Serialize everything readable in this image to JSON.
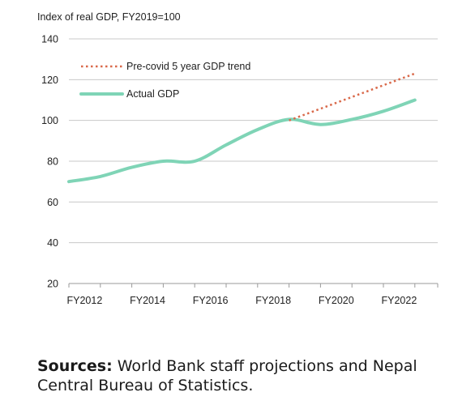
{
  "chart_data": {
    "type": "line",
    "ylabel": "Index of real GDP, FY2019=100",
    "ylim": [
      20,
      140
    ],
    "yticks": [
      20,
      40,
      60,
      80,
      100,
      120,
      140
    ],
    "xlim": [
      2012,
      2023
    ],
    "xticks": [
      {
        "value": 2012,
        "label": "FY2012"
      },
      {
        "value": 2014,
        "label": "FY2014"
      },
      {
        "value": 2016,
        "label": "FY2016"
      },
      {
        "value": 2018,
        "label": "FY2018"
      },
      {
        "value": 2020,
        "label": "FY2020"
      },
      {
        "value": 2022,
        "label": "FY2022"
      }
    ],
    "grid": "horizontal",
    "legend_position": "top-left",
    "series": [
      {
        "name": "Pre-covid 5 year GDP trend",
        "style": "dotted",
        "color": "#d9694a",
        "points": [
          {
            "x": 2019,
            "y": 100
          },
          {
            "x": 2023,
            "y": 123
          }
        ]
      },
      {
        "name": "Actual GDP",
        "style": "solid",
        "color": "#7fd4b6",
        "points": [
          {
            "x": 2012,
            "y": 70
          },
          {
            "x": 2013,
            "y": 72.5
          },
          {
            "x": 2014,
            "y": 77
          },
          {
            "x": 2015,
            "y": 80
          },
          {
            "x": 2016,
            "y": 80
          },
          {
            "x": 2017,
            "y": 88
          },
          {
            "x": 2018,
            "y": 95.5
          },
          {
            "x": 2019,
            "y": 100.5
          },
          {
            "x": 2020,
            "y": 98
          },
          {
            "x": 2021,
            "y": 100.5
          },
          {
            "x": 2022,
            "y": 104.5
          },
          {
            "x": 2023,
            "y": 110
          }
        ]
      }
    ]
  },
  "sources": {
    "label": "Sources:",
    "text": " World Bank staff projections and Nepal Central Bureau of Statistics."
  }
}
